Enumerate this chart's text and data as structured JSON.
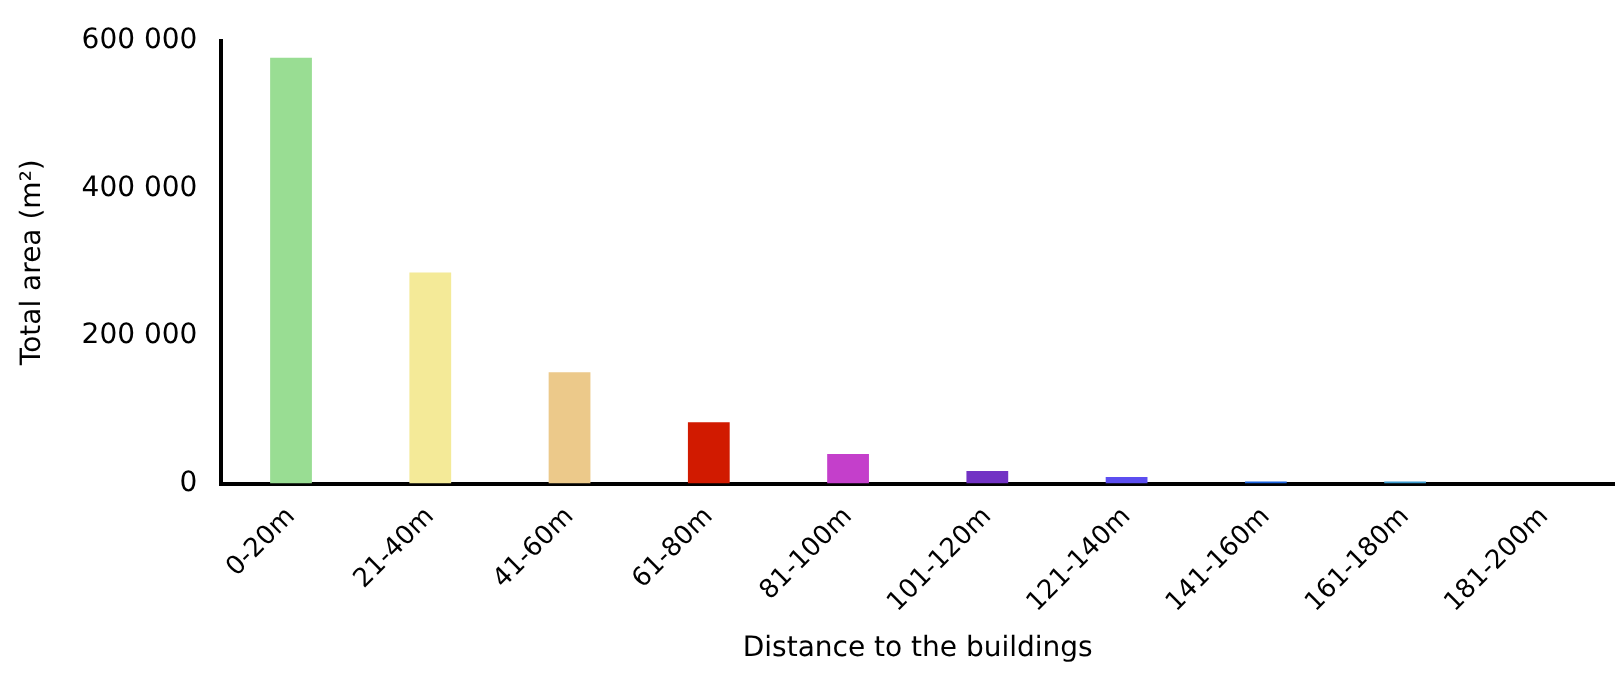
{
  "chart_data": {
    "type": "bar",
    "xlabel": "Distance to the buildings",
    "ylabel": "Total area (m²)",
    "categories": [
      "0-20m",
      "21-40m",
      "41-60m",
      "61-80m",
      "81-100m",
      "101-120m",
      "121-140m",
      "141-160m",
      "161-180m",
      "181-200m"
    ],
    "values": [
      577000,
      286000,
      151000,
      83000,
      40000,
      17000,
      9000,
      3000,
      3000,
      null
    ],
    "colors": [
      "#99dd93",
      "#f4ea98",
      "#ecc98a",
      "#d11a00",
      "#c43fcb",
      "#7232c4",
      "#5c4ef0",
      "#1a63e0",
      "#3a9bd0",
      "#40a0e0"
    ],
    "ylim": [
      0,
      600000
    ],
    "yticks": [
      {
        "value": 0,
        "label": "0"
      },
      {
        "value": 200000,
        "label": "200 000"
      },
      {
        "value": 400000,
        "label": "400 000"
      },
      {
        "value": 600000,
        "label": "600 000"
      }
    ],
    "grid": false,
    "legend": false
  }
}
